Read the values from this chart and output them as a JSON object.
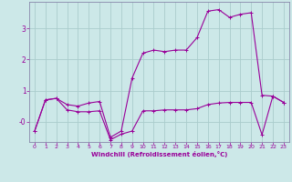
{
  "xlabel": "Windchill (Refroidissement éolien,°C)",
  "bg_color": "#cce8e8",
  "grid_color": "#aacccc",
  "line_color": "#990099",
  "spine_color": "#8888aa",
  "xlim": [
    -0.5,
    23.5
  ],
  "ylim": [
    -0.65,
    3.85
  ],
  "xticks": [
    0,
    1,
    2,
    3,
    4,
    5,
    6,
    7,
    8,
    9,
    10,
    11,
    12,
    13,
    14,
    15,
    16,
    17,
    18,
    19,
    20,
    21,
    22,
    23
  ],
  "ytick_vals": [
    0,
    1,
    2,
    3
  ],
  "ytick_labels": [
    "-0",
    "1",
    "2",
    "3"
  ],
  "series1_x": [
    0,
    1,
    2,
    3,
    4,
    5,
    6,
    7,
    8,
    9,
    10,
    11,
    12,
    13,
    14,
    15,
    16,
    17,
    18,
    19,
    20,
    21,
    22,
    23
  ],
  "series1_y": [
    -0.3,
    0.7,
    0.75,
    0.55,
    0.5,
    0.6,
    0.65,
    -0.5,
    -0.3,
    1.4,
    2.2,
    2.3,
    2.25,
    2.3,
    2.3,
    2.7,
    3.55,
    3.6,
    3.35,
    3.45,
    3.5,
    0.85,
    0.82,
    0.62
  ],
  "series2_x": [
    0,
    1,
    2,
    3,
    4,
    5,
    6,
    7,
    8,
    9,
    10,
    11,
    12,
    13,
    14,
    15,
    16,
    17,
    18,
    19,
    20,
    21,
    22,
    23
  ],
  "series2_y": [
    -0.3,
    0.7,
    0.75,
    0.38,
    0.32,
    0.32,
    0.35,
    -0.58,
    -0.4,
    -0.3,
    0.35,
    0.35,
    0.38,
    0.38,
    0.38,
    0.42,
    0.55,
    0.6,
    0.62,
    0.62,
    0.62,
    -0.42,
    0.82,
    0.62
  ]
}
